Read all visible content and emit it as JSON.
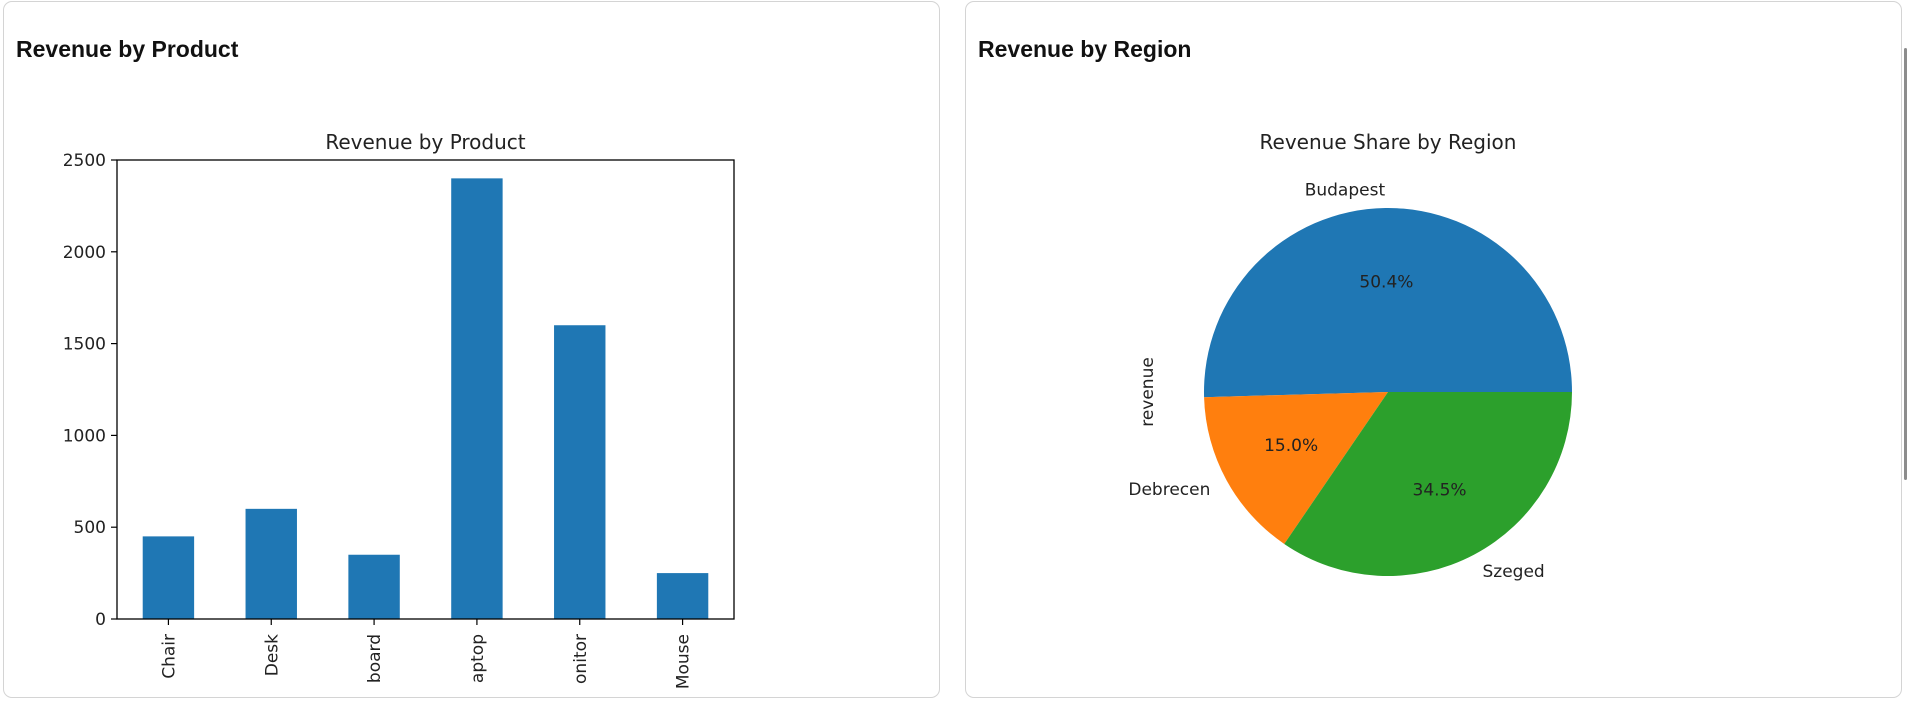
{
  "panels": {
    "product": {
      "title": "Revenue by Product"
    },
    "region": {
      "title": "Revenue by Region"
    }
  },
  "chart_data": [
    {
      "type": "bar",
      "title": "Revenue by Product",
      "categories": [
        "Chair",
        "Desk",
        "board",
        "aptop",
        "onitor",
        "Mouse"
      ],
      "values": [
        450,
        600,
        350,
        2400,
        1600,
        250
      ],
      "ylim": [
        0,
        2500
      ],
      "yticks": [
        0,
        500,
        1000,
        1500,
        2000,
        2500
      ],
      "xlabel": "",
      "ylabel": "",
      "color": "#1f77b4"
    },
    {
      "type": "pie",
      "title": "Revenue Share by Region",
      "ylabel": "revenue",
      "slices": [
        {
          "label": "Budapest",
          "value": 50.4,
          "pct_label": "50.4%",
          "color": "#1f77b4"
        },
        {
          "label": "Debrecen",
          "value": 15.0,
          "pct_label": "15.0%",
          "color": "#ff7f0e"
        },
        {
          "label": "Szeged",
          "value": 34.5,
          "pct_label": "34.5%",
          "color": "#2ca02c"
        }
      ]
    }
  ]
}
